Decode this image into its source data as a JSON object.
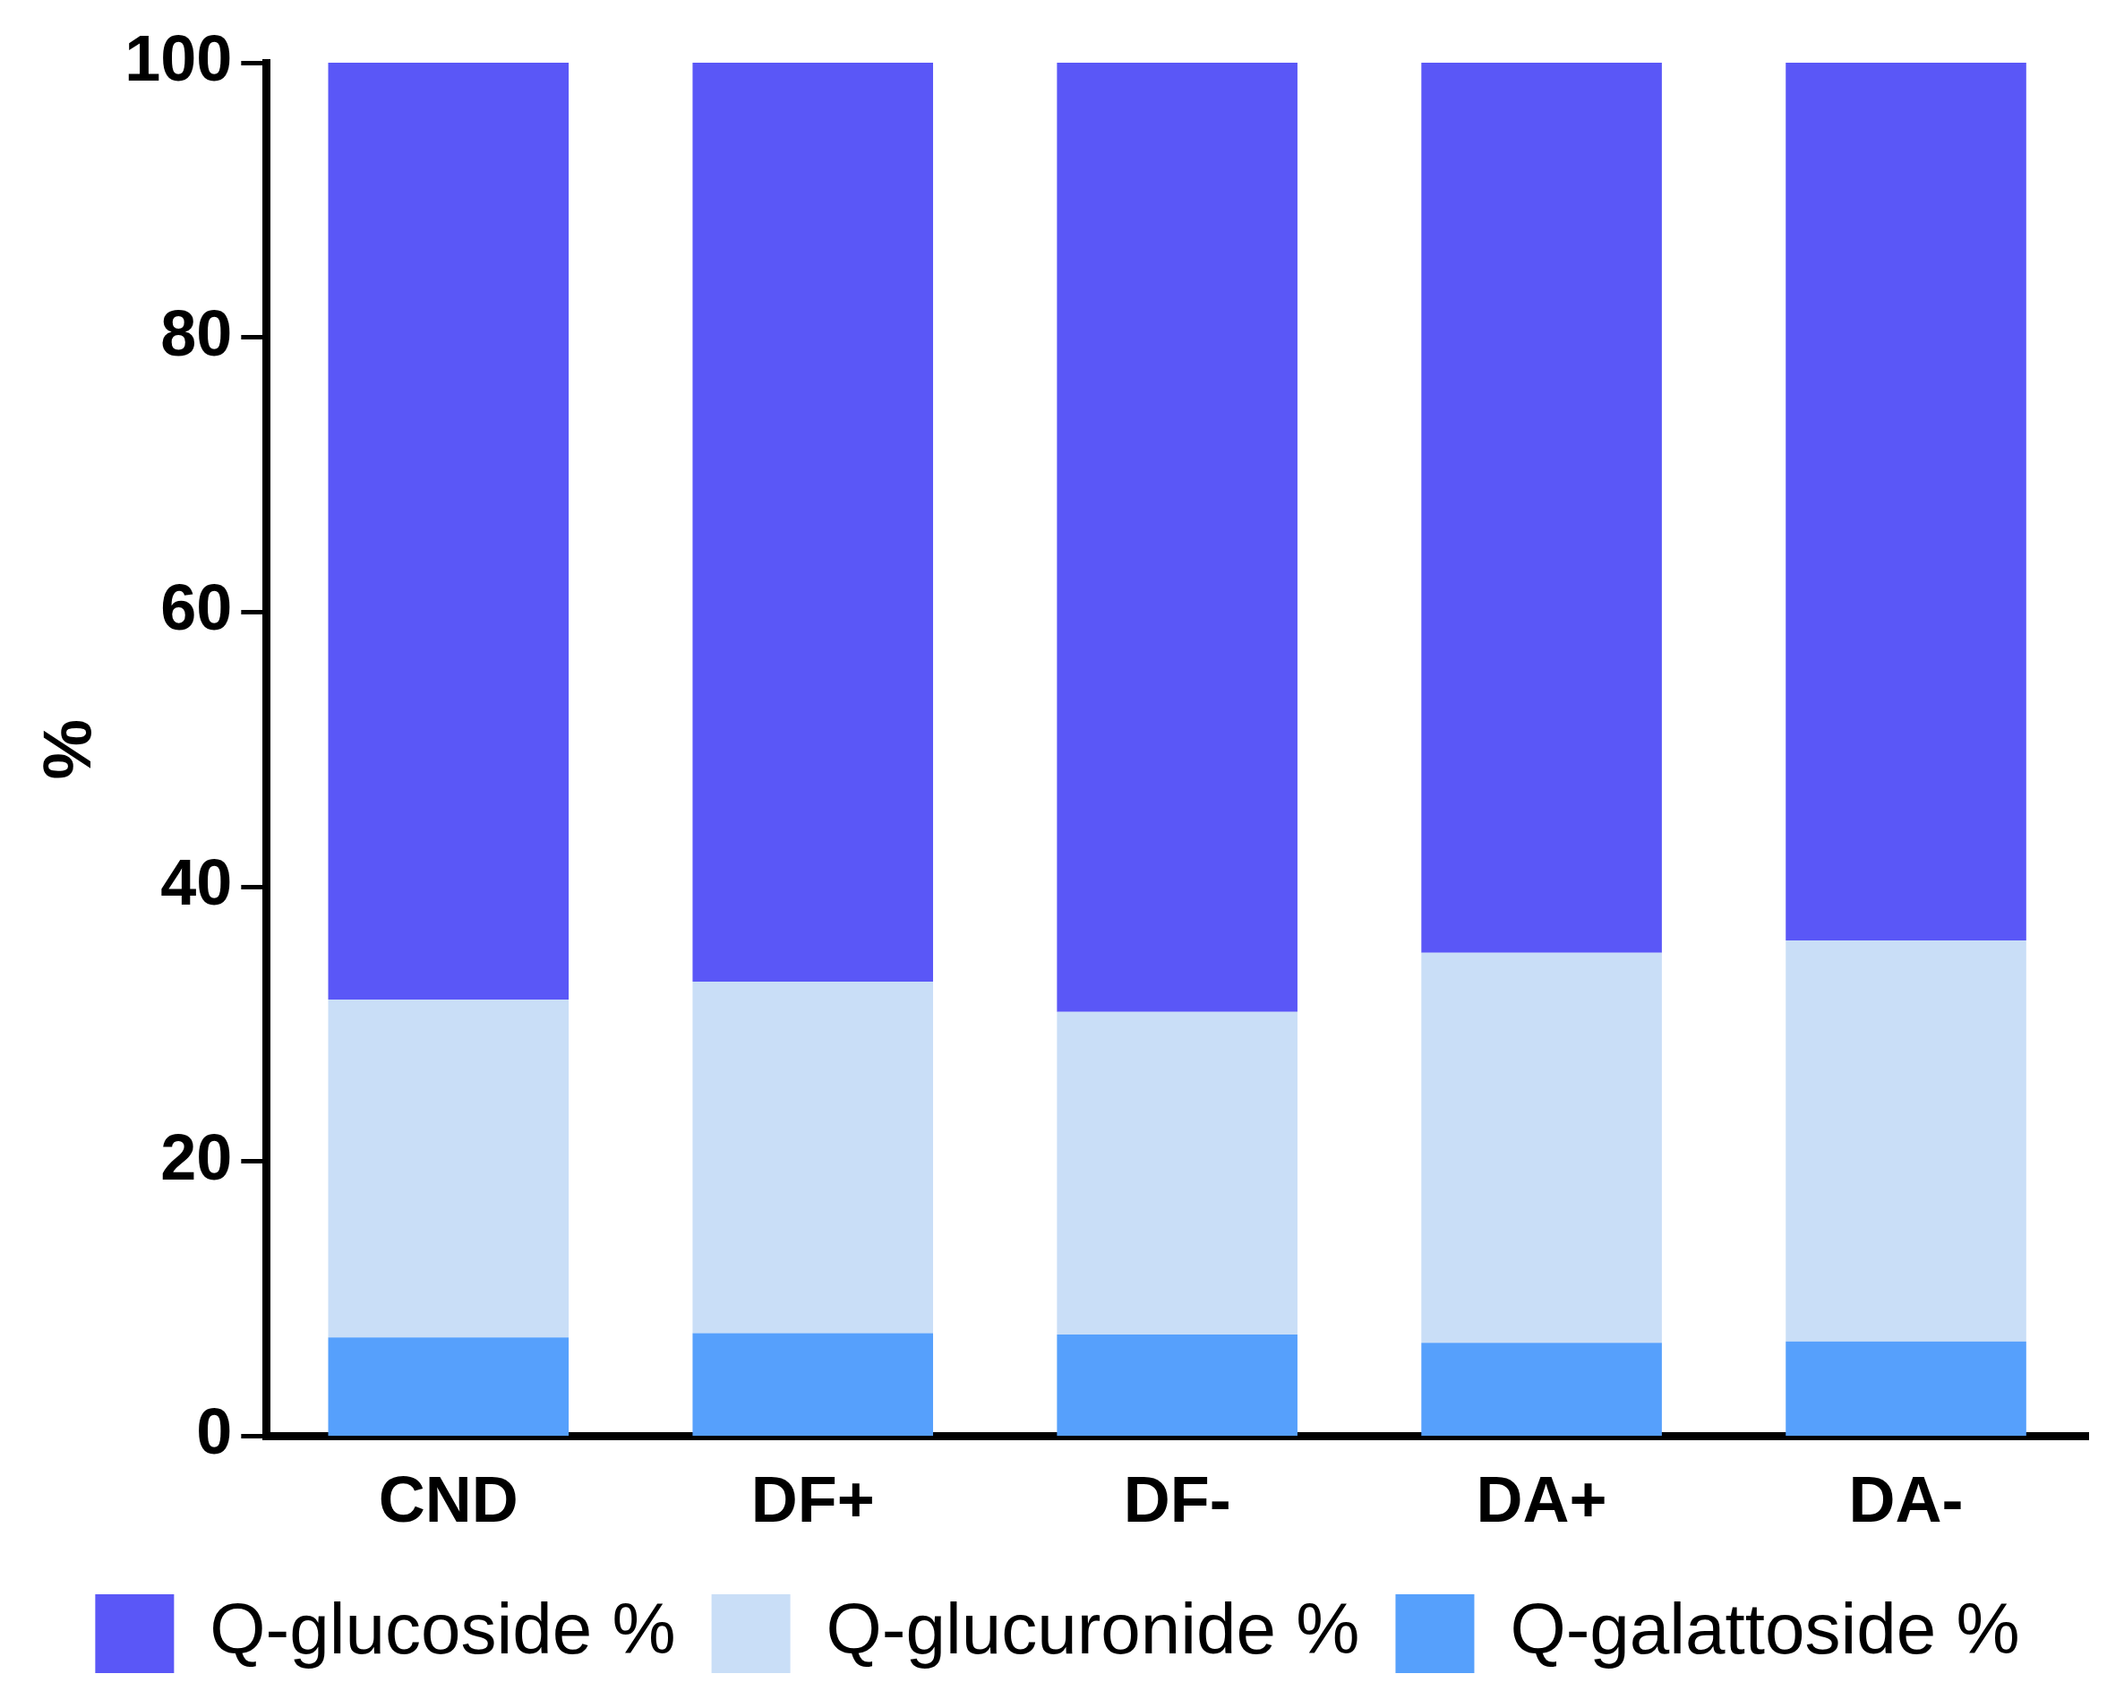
{
  "chart_data": {
    "type": "bar",
    "stacked": true,
    "ylabel": "%",
    "categories": [
      "CND",
      "DF+",
      "DF-",
      "DA+",
      "DA-"
    ],
    "series": [
      {
        "name": "Q-galattoside %",
        "color": "#56a0fc",
        "values": [
          7.2,
          7.5,
          7.4,
          6.8,
          6.9
        ]
      },
      {
        "name": "Q-glucuronide %",
        "color": "#c9def7",
        "values": [
          24.6,
          25.6,
          23.5,
          28.4,
          29.2
        ]
      },
      {
        "name": "Q-glucoside %",
        "color": "#5a57f7",
        "values": [
          68.2,
          66.9,
          69.1,
          64.8,
          63.9
        ]
      }
    ],
    "ylim": [
      0,
      100
    ],
    "yticks": [
      0,
      20,
      40,
      60,
      80,
      100
    ],
    "grid": false,
    "legend": "bottom"
  }
}
